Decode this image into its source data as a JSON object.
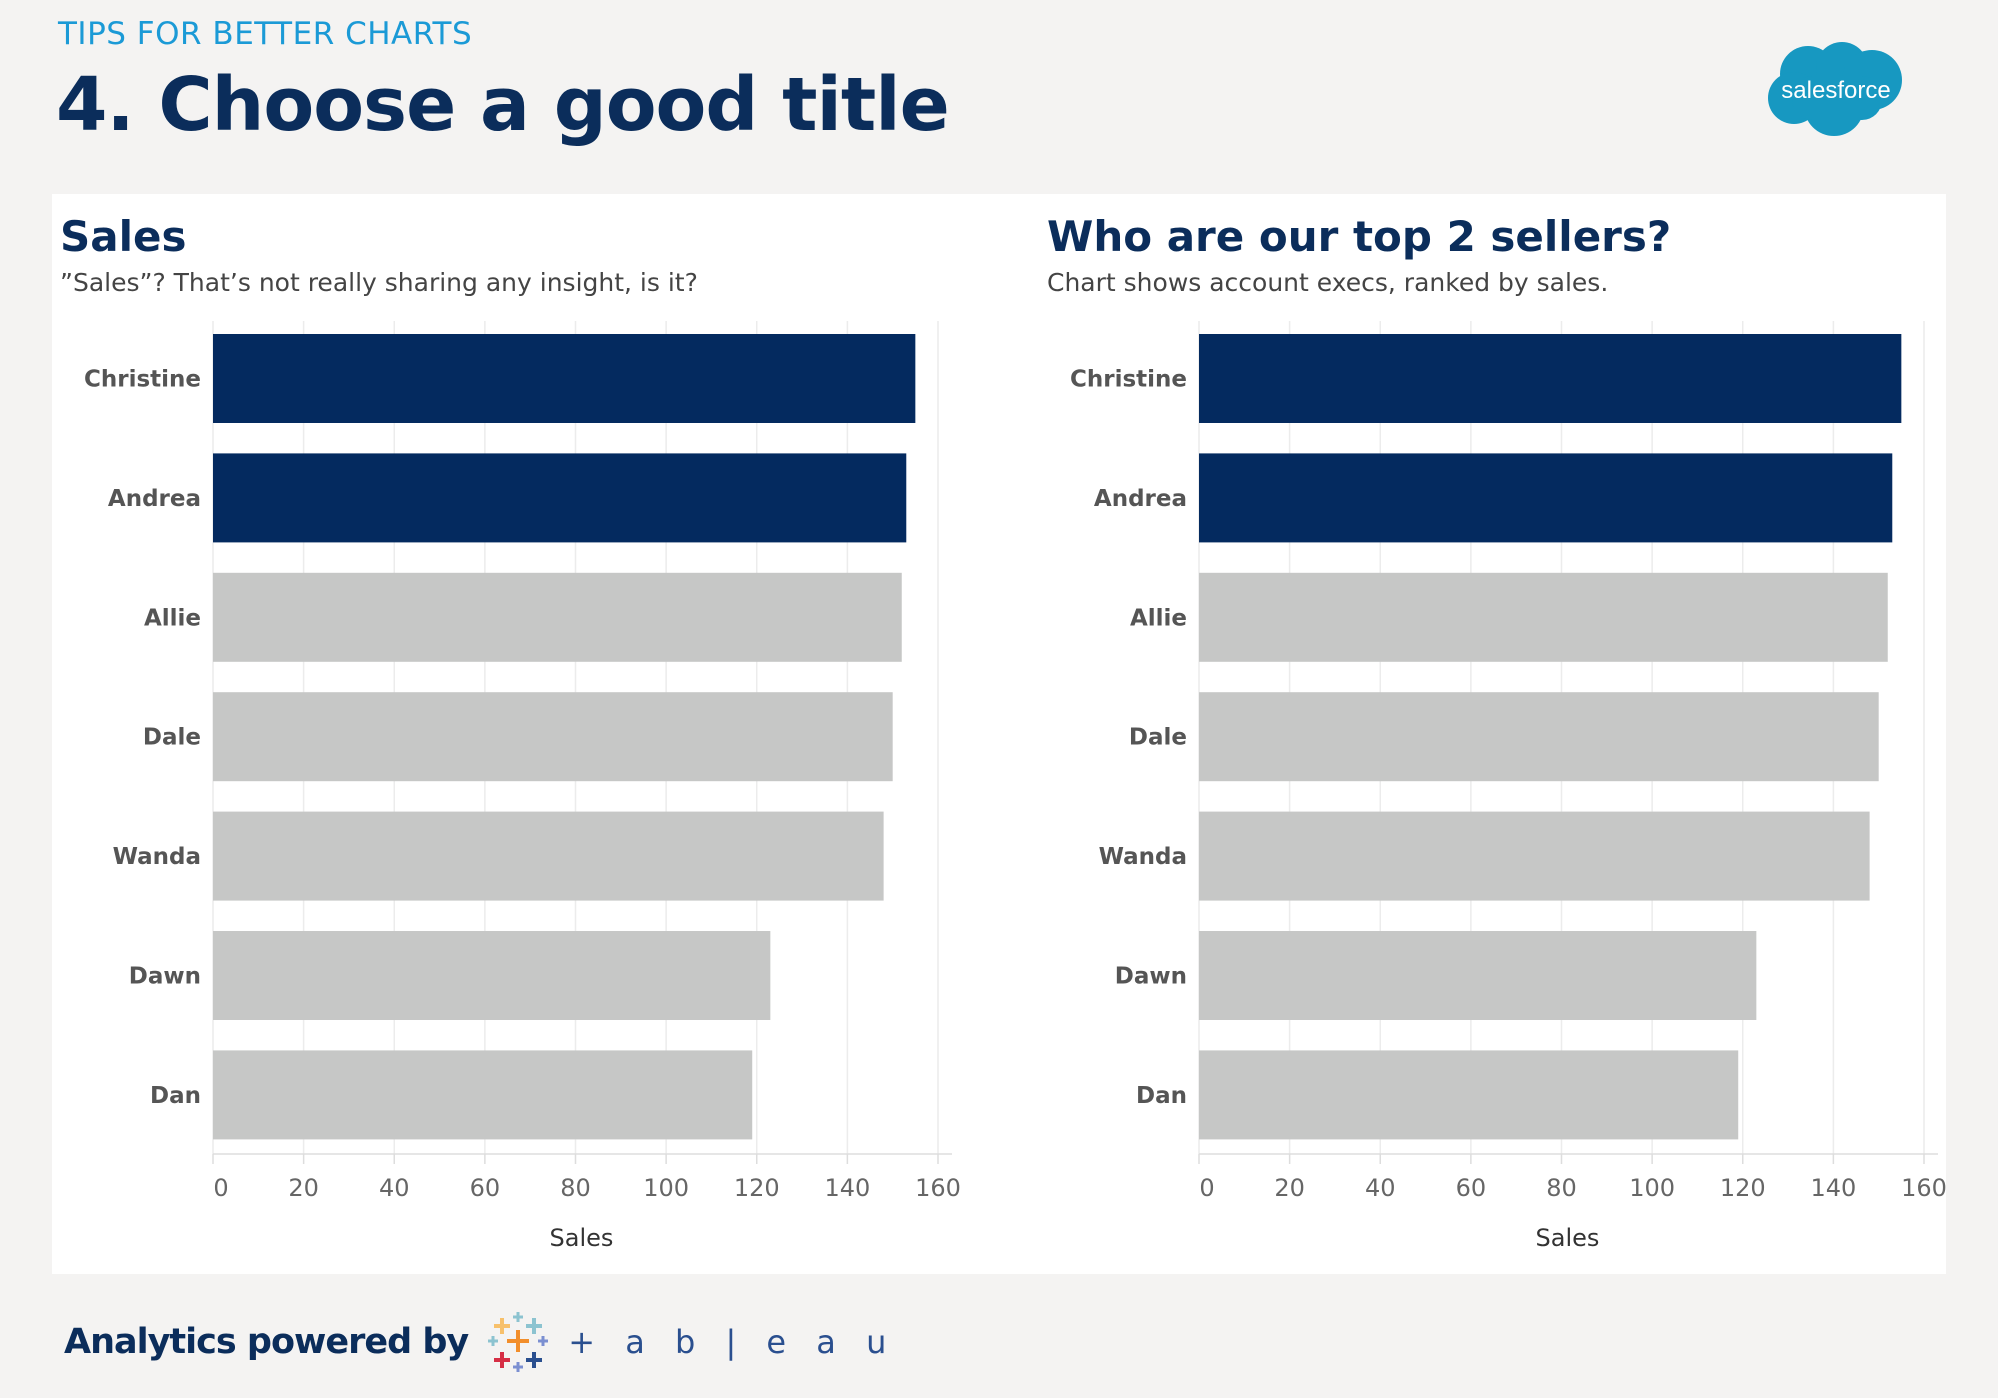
{
  "header": {
    "eyebrow": "TIPS FOR BETTER CHARTS",
    "title": "4. Choose a good title",
    "logo_text": "salesforce"
  },
  "footer": {
    "text": "Analytics powered by",
    "brand": "+ a b | e a u"
  },
  "colors": {
    "highlight": "#042a5f",
    "default_bar": "#c6c7c6",
    "title": "#0b2d5b",
    "eyebrow": "#1b9ad6",
    "background": "#f4f3f2"
  },
  "chart_data": [
    {
      "type": "bar",
      "orientation": "horizontal",
      "title": "Sales",
      "subtitle": "”Sales”? That’s not really sharing any insight, is it?",
      "categories": [
        "Christine",
        "Andrea",
        "Allie",
        "Dale",
        "Wanda",
        "Dawn",
        "Dan"
      ],
      "values": [
        155,
        153,
        152,
        150,
        148,
        123,
        119
      ],
      "highlighted": [
        "Christine",
        "Andrea"
      ],
      "xlabel": "Sales",
      "xlim": [
        0,
        160
      ],
      "xticks": [
        0,
        20,
        40,
        60,
        80,
        100,
        120,
        140,
        160
      ],
      "grid": true
    },
    {
      "type": "bar",
      "orientation": "horizontal",
      "title": "Who are our top 2 sellers?",
      "subtitle": "Chart shows account execs, ranked by sales.",
      "categories": [
        "Christine",
        "Andrea",
        "Allie",
        "Dale",
        "Wanda",
        "Dawn",
        "Dan"
      ],
      "values": [
        155,
        153,
        152,
        150,
        148,
        123,
        119
      ],
      "highlighted": [
        "Christine",
        "Andrea"
      ],
      "xlabel": "Sales",
      "xlim": [
        0,
        160
      ],
      "xticks": [
        0,
        20,
        40,
        60,
        80,
        100,
        120,
        140,
        160
      ],
      "grid": true
    }
  ]
}
